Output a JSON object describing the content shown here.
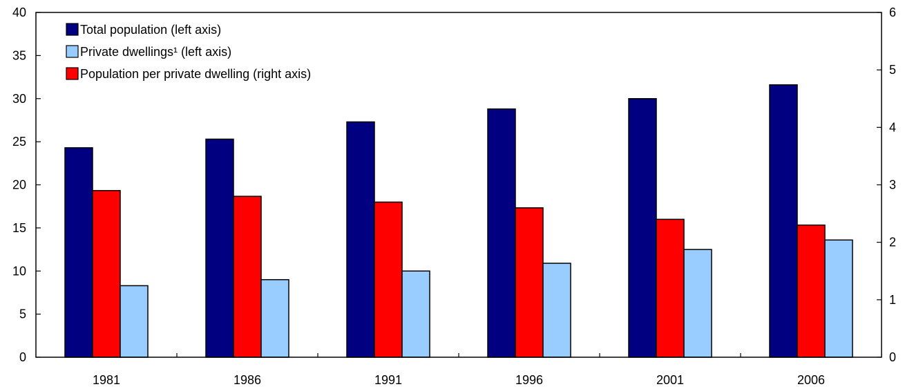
{
  "chart_data": {
    "type": "bar",
    "categories": [
      "1981",
      "1986",
      "1991",
      "1996",
      "2001",
      "2006"
    ],
    "series": [
      {
        "name": "Total population (left axis)",
        "axis": "left",
        "color": "#000080",
        "values": [
          24.3,
          25.3,
          27.3,
          28.8,
          30.0,
          31.6
        ]
      },
      {
        "name": "Population per private dwelling   (right axis)",
        "axis": "right",
        "color": "#ff0000",
        "values": [
          2.9,
          2.8,
          2.7,
          2.6,
          2.4,
          2.3
        ]
      },
      {
        "name": "Private dwellings¹   (left axis)",
        "axis": "left",
        "color": "#99ccff",
        "values": [
          8.3,
          9.0,
          10.0,
          10.9,
          12.5,
          13.6
        ]
      }
    ],
    "legend_order": [
      0,
      2,
      1
    ],
    "left_axis": {
      "min": 0,
      "max": 40,
      "ticks": [
        "0",
        "5",
        "10",
        "15",
        "20",
        "25",
        "30",
        "35",
        "40"
      ]
    },
    "right_axis": {
      "min": 0,
      "max": 6,
      "ticks": [
        "0",
        "1",
        "2",
        "3",
        "4",
        "5",
        "6"
      ]
    },
    "legend_position": "top-left",
    "grid": false
  }
}
